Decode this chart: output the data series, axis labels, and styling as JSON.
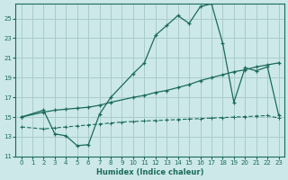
{
  "xlabel": "Humidex (Indice chaleur)",
  "bg_color": "#cce8e8",
  "grid_color": "#aacccc",
  "line_color": "#1a6b5a",
  "xlim": [
    -0.5,
    23.5
  ],
  "ylim": [
    11,
    26.5
  ],
  "xticks": [
    0,
    1,
    2,
    3,
    4,
    5,
    6,
    7,
    8,
    9,
    10,
    11,
    12,
    13,
    14,
    15,
    16,
    17,
    18,
    19,
    20,
    21,
    22,
    23
  ],
  "yticks": [
    11,
    13,
    15,
    17,
    19,
    21,
    23,
    25
  ],
  "line1_x": [
    0,
    2,
    3,
    4,
    5,
    6,
    7,
    8,
    10,
    11,
    12,
    13,
    14,
    15,
    16,
    17,
    18,
    19,
    20,
    21,
    22,
    23
  ],
  "line1_y": [
    15.0,
    15.7,
    13.3,
    13.1,
    12.1,
    12.2,
    15.3,
    17.0,
    19.4,
    20.5,
    23.3,
    24.3,
    25.3,
    24.5,
    26.2,
    26.5,
    22.5,
    16.5,
    20.0,
    19.7,
    20.1,
    15.2
  ],
  "line2_x": [
    0,
    2,
    3,
    4,
    5,
    6,
    7,
    8,
    10,
    11,
    12,
    13,
    14,
    15,
    16,
    17,
    18,
    19,
    20,
    21,
    22,
    23
  ],
  "line2_y": [
    15.0,
    15.5,
    15.7,
    15.8,
    15.9,
    16.0,
    16.2,
    16.5,
    17.0,
    17.2,
    17.5,
    17.7,
    18.0,
    18.3,
    18.7,
    19.0,
    19.3,
    19.6,
    19.8,
    20.1,
    20.3,
    20.5
  ],
  "line3_x": [
    0,
    2,
    3,
    4,
    5,
    6,
    7,
    8,
    9,
    10,
    11,
    12,
    13,
    14,
    15,
    16,
    17,
    18,
    19,
    20,
    21,
    22,
    23
  ],
  "line3_y": [
    14.0,
    13.8,
    13.9,
    14.0,
    14.1,
    14.2,
    14.3,
    14.4,
    14.5,
    14.55,
    14.6,
    14.65,
    14.7,
    14.75,
    14.8,
    14.85,
    14.9,
    14.95,
    15.0,
    15.05,
    15.1,
    15.15,
    14.9
  ]
}
